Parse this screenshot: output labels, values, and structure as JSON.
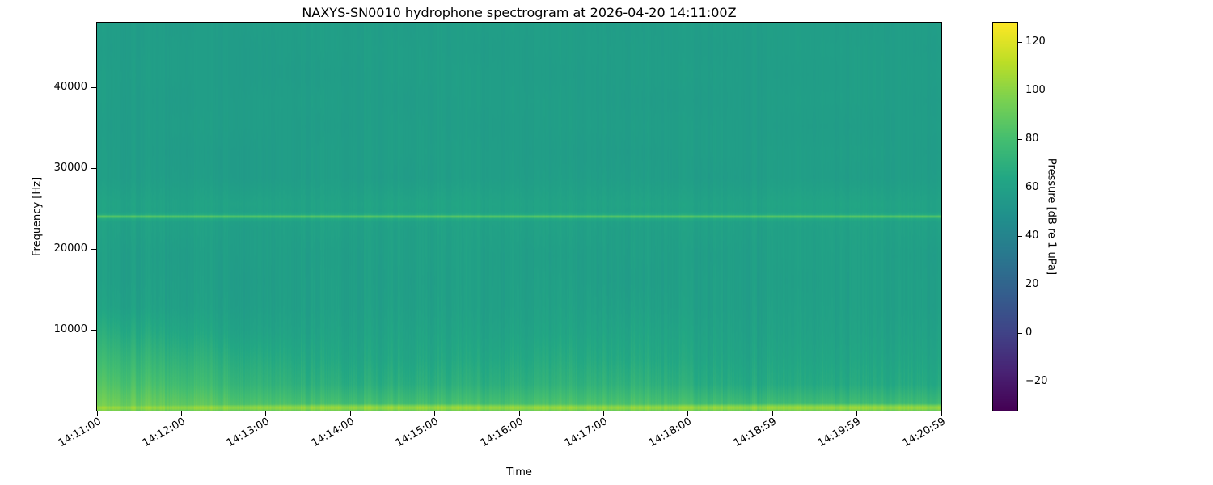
{
  "chart_data": {
    "type": "heatmap",
    "title": "NAXYS-SN0010 hydrophone spectrogram at 2026-04-20 14:11:00Z",
    "xlabel": "Time",
    "ylabel": "Frequency [Hz]",
    "x_tick_labels": [
      "14:11:00",
      "14:12:00",
      "14:13:00",
      "14:14:00",
      "14:15:00",
      "14:16:00",
      "14:17:00",
      "14:18:00",
      "14:18:59",
      "14:19:59",
      "14:20:59"
    ],
    "y_ticks": [
      {
        "label": "10000",
        "value": 10000
      },
      {
        "label": "20000",
        "value": 20000
      },
      {
        "label": "30000",
        "value": 30000
      },
      {
        "label": "40000",
        "value": 40000
      }
    ],
    "ylim": [
      0,
      48000
    ],
    "time_range": [
      "14:11:00",
      "14:20:59"
    ],
    "colorbar": {
      "label": "Pressure [dB re 1 uPa]",
      "colormap": "viridis",
      "vmin": -32,
      "vmax": 128,
      "ticks": [
        {
          "label": "−20",
          "value": -20
        },
        {
          "label": "0",
          "value": 0
        },
        {
          "label": "20",
          "value": 20
        },
        {
          "label": "40",
          "value": 40
        },
        {
          "label": "60",
          "value": 60
        },
        {
          "label": "80",
          "value": 80
        },
        {
          "label": "100",
          "value": 100
        },
        {
          "label": "120",
          "value": 120
        }
      ]
    },
    "grid": {
      "rows": 16,
      "cols": 12,
      "row_order": "top_to_bottom",
      "description": "Approximate broadband level (dB re 1 uPa) on a 16 (freq, 48kHz->0) x 12 (time, 14:11->14:21) grid",
      "values_db": [
        [
          58,
          57,
          58,
          58,
          57,
          58,
          58,
          57,
          58,
          58,
          57,
          58
        ],
        [
          57,
          58,
          57,
          58,
          58,
          57,
          58,
          58,
          57,
          58,
          58,
          57
        ],
        [
          58,
          58,
          57,
          57,
          58,
          58,
          57,
          58,
          58,
          57,
          58,
          58
        ],
        [
          58,
          57,
          58,
          58,
          57,
          58,
          58,
          57,
          57,
          58,
          58,
          57
        ],
        [
          57,
          58,
          58,
          57,
          58,
          57,
          58,
          58,
          58,
          57,
          57,
          58
        ],
        [
          58,
          57,
          57,
          58,
          58,
          58,
          57,
          57,
          58,
          58,
          58,
          57
        ],
        [
          58,
          58,
          57,
          58,
          57,
          58,
          58,
          58,
          57,
          58,
          57,
          58
        ],
        [
          62,
          61,
          62,
          61,
          62,
          62,
          61,
          62,
          61,
          62,
          62,
          61
        ],
        [
          60,
          60,
          59,
          60,
          59,
          60,
          60,
          59,
          60,
          59,
          60,
          60
        ],
        [
          59,
          58,
          59,
          58,
          59,
          59,
          58,
          59,
          58,
          59,
          59,
          58
        ],
        [
          59,
          59,
          58,
          59,
          58,
          59,
          59,
          58,
          59,
          58,
          59,
          59
        ],
        [
          61,
          60,
          59,
          59,
          59,
          59,
          60,
          60,
          59,
          59,
          59,
          59
        ],
        [
          68,
          65,
          62,
          61,
          61,
          61,
          62,
          63,
          61,
          60,
          60,
          61
        ],
        [
          76,
          72,
          68,
          64,
          63,
          64,
          66,
          66,
          63,
          62,
          62,
          63
        ],
        [
          84,
          80,
          74,
          69,
          68,
          69,
          71,
          72,
          67,
          65,
          65,
          66
        ],
        [
          96,
          93,
          88,
          84,
          83,
          84,
          86,
          87,
          83,
          81,
          81,
          82
        ]
      ]
    },
    "tonal_bands": [
      {
        "frequency_hz": 24000,
        "peak_db": 86,
        "sigma_hz": 300
      },
      {
        "frequency_hz": 24000,
        "peak_db": 66,
        "sigma_hz": 1600
      },
      {
        "frequency_hz": 300,
        "peak_db": 102,
        "sigma_hz": 700
      }
    ]
  }
}
